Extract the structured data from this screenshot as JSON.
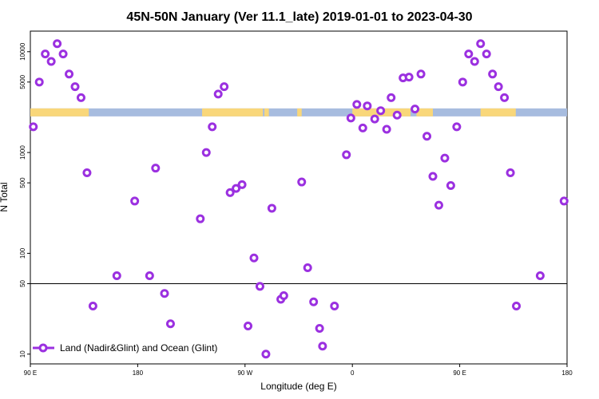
{
  "chart_data": {
    "type": "scatter",
    "title": "45N-50N January (Ver 11.1_late)   2019-01-01 to 2023-04-30",
    "xlabel": "Longitude (deg E)",
    "ylabel": "N Total",
    "y_scale": "log",
    "xlim": [
      90,
      270
    ],
    "ylim": [
      8,
      16000
    ],
    "x_ticks": [
      {
        "value": 90,
        "label": "90 E"
      },
      {
        "value": 126,
        "label": "180"
      },
      {
        "value": 162,
        "label": "90 W"
      },
      {
        "value": 198,
        "label": "0"
      },
      {
        "value": 234,
        "label": "90 E"
      },
      {
        "value": 270,
        "label": "180"
      }
    ],
    "y_ticks": [
      {
        "value": 10,
        "label": "10"
      },
      {
        "value": 50,
        "label": "50"
      },
      {
        "value": 100,
        "label": "100"
      },
      {
        "value": 500,
        "label": "500"
      },
      {
        "value": 1000,
        "label": "1000"
      },
      {
        "value": 5000,
        "label": "5000"
      },
      {
        "value": 10000,
        "label": "10000"
      }
    ],
    "reference_line": {
      "y": 50,
      "color": "#000000"
    },
    "land_ocean_strip": {
      "y": 2500,
      "land_color": "#f9d77a",
      "ocean_color": "#a7bcdf",
      "land_x_ranges": [
        [
          90,
          109.6
        ],
        [
          147.6,
          168
        ],
        [
          168.5,
          170
        ],
        [
          179.5,
          181
        ],
        [
          198,
          217.5
        ],
        [
          219.5,
          225
        ],
        [
          241,
          252.8
        ]
      ]
    },
    "series": [
      {
        "name": "Land (Nadir&Glint) and Ocean (Glint)",
        "color": "#9b30e0",
        "points": [
          {
            "x": 91,
            "y": 1800
          },
          {
            "x": 93,
            "y": 5000
          },
          {
            "x": 95,
            "y": 9500
          },
          {
            "x": 97,
            "y": 8000
          },
          {
            "x": 99,
            "y": 12000
          },
          {
            "x": 101,
            "y": 9500
          },
          {
            "x": 103,
            "y": 6000
          },
          {
            "x": 105,
            "y": 4500
          },
          {
            "x": 107,
            "y": 3500
          },
          {
            "x": 109,
            "y": 630
          },
          {
            "x": 111,
            "y": 30
          },
          {
            "x": 119,
            "y": 60
          },
          {
            "x": 125,
            "y": 330
          },
          {
            "x": 130,
            "y": 60
          },
          {
            "x": 132,
            "y": 700
          },
          {
            "x": 135,
            "y": 40
          },
          {
            "x": 137,
            "y": 20
          },
          {
            "x": 147,
            "y": 220
          },
          {
            "x": 149,
            "y": 1000
          },
          {
            "x": 151,
            "y": 1800
          },
          {
            "x": 153,
            "y": 3800
          },
          {
            "x": 155,
            "y": 4500
          },
          {
            "x": 157,
            "y": 400
          },
          {
            "x": 159,
            "y": 440
          },
          {
            "x": 161,
            "y": 480
          },
          {
            "x": 163,
            "y": 19
          },
          {
            "x": 165,
            "y": 90
          },
          {
            "x": 167,
            "y": 47
          },
          {
            "x": 169,
            "y": 10
          },
          {
            "x": 171,
            "y": 280
          },
          {
            "x": 174,
            "y": 35
          },
          {
            "x": 175,
            "y": 38
          },
          {
            "x": 181,
            "y": 510
          },
          {
            "x": 183,
            "y": 72
          },
          {
            "x": 185,
            "y": 33
          },
          {
            "x": 187,
            "y": 18
          },
          {
            "x": 188,
            "y": 12
          },
          {
            "x": 192,
            "y": 30
          },
          {
            "x": 196,
            "y": 950
          },
          {
            "x": 197.5,
            "y": 2200
          },
          {
            "x": 199.5,
            "y": 3000
          },
          {
            "x": 201.5,
            "y": 1750
          },
          {
            "x": 203,
            "y": 2900
          },
          {
            "x": 205.5,
            "y": 2150
          },
          {
            "x": 207.5,
            "y": 2600
          },
          {
            "x": 209.5,
            "y": 1700
          },
          {
            "x": 211,
            "y": 3500
          },
          {
            "x": 213,
            "y": 2350
          },
          {
            "x": 215,
            "y": 5500
          },
          {
            "x": 217,
            "y": 5600
          },
          {
            "x": 219,
            "y": 2700
          },
          {
            "x": 221,
            "y": 6000
          },
          {
            "x": 223,
            "y": 1450
          },
          {
            "x": 225,
            "y": 580
          },
          {
            "x": 227,
            "y": 300
          },
          {
            "x": 229,
            "y": 880
          },
          {
            "x": 231,
            "y": 470
          },
          {
            "x": 233,
            "y": 1800
          },
          {
            "x": 235,
            "y": 5000
          },
          {
            "x": 237,
            "y": 9500
          },
          {
            "x": 239,
            "y": 8000
          },
          {
            "x": 241,
            "y": 12000
          },
          {
            "x": 243,
            "y": 9500
          },
          {
            "x": 245,
            "y": 6000
          },
          {
            "x": 247,
            "y": 4500
          },
          {
            "x": 249,
            "y": 3500
          },
          {
            "x": 251,
            "y": 630
          },
          {
            "x": 253,
            "y": 30
          },
          {
            "x": 261,
            "y": 60
          },
          {
            "x": 269,
            "y": 330
          }
        ]
      }
    ],
    "legend": {
      "position": "bottom-left"
    }
  }
}
